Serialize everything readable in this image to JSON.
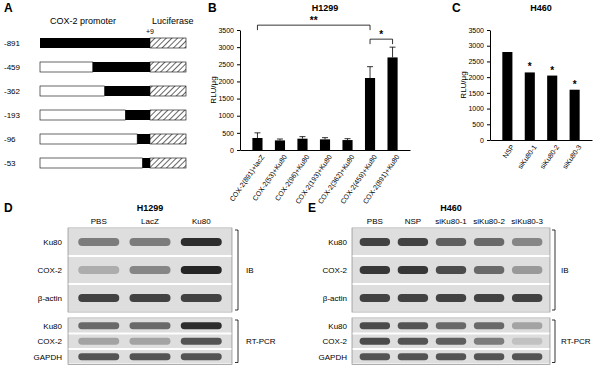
{
  "chart_data": [
    {
      "panel": "B",
      "type": "bar",
      "title": "H1299",
      "y_label": "RLU/μg",
      "categories": [
        "COX-2(891)+lacZ",
        "COX-2(53)+Ku80",
        "COX-2(96)+Ku80",
        "COX-2(193)+Ku80",
        "COX-2(362)+Ku80",
        "COX-2(459)+Ku80",
        "COX-2(891)+Ku80"
      ],
      "values": [
        350,
        280,
        330,
        310,
        290,
        2100,
        2700
      ],
      "errors": [
        150,
        40,
        60,
        50,
        40,
        330,
        300
      ],
      "color": "#000000",
      "ylim": [
        0,
        3500
      ],
      "yticks": [
        0,
        500,
        1000,
        1500,
        2000,
        2500,
        3000,
        3500
      ],
      "annotations": [
        {
          "text": "**",
          "from": 0,
          "to": 5
        },
        {
          "text": "*",
          "from": 5,
          "to": 6
        }
      ]
    },
    {
      "panel": "C",
      "type": "bar",
      "title": "H460",
      "y_label": "RLU/μg",
      "categories": [
        "NSP",
        "siKu80-1",
        "siKu80-2",
        "siKu80-3"
      ],
      "values": [
        2800,
        2150,
        2050,
        1600
      ],
      "color": "#000000",
      "ylim": [
        0,
        3500
      ],
      "yticks": [
        0,
        500,
        1000,
        1500,
        2000,
        2500,
        3000,
        3500
      ],
      "annotations": [
        {
          "text": "*",
          "category": 1
        },
        {
          "text": "*",
          "category": 2
        },
        {
          "text": "*",
          "category": 3
        }
      ]
    }
  ],
  "diagram": {
    "panel": "A",
    "header": "COX-2 promoter",
    "reporter": "Luciferase",
    "end": {
      "value": 9,
      "label": "+9"
    },
    "constructs": [
      -891,
      -459,
      -362,
      -193,
      -96,
      -53
    ]
  },
  "blots": [
    {
      "panel": "D",
      "title": "H1299",
      "lanes": [
        "PBS",
        "LacZ",
        "Ku80"
      ],
      "groups": [
        {
          "label": "IB",
          "rows": [
            {
              "name": "Ku80",
              "intensity": [
                0.5,
                0.5,
                0.9
              ]
            },
            {
              "name": "COX-2",
              "intensity": [
                0.25,
                0.45,
                0.95
              ]
            },
            {
              "name": "β-actin",
              "intensity": [
                0.8,
                0.8,
                0.8
              ]
            }
          ]
        },
        {
          "label": "RT-PCR",
          "rows": [
            {
              "name": "Ku80",
              "intensity": [
                0.6,
                0.6,
                0.9
              ]
            },
            {
              "name": "COX-2",
              "intensity": [
                0.3,
                0.3,
                0.7
              ]
            },
            {
              "name": "GAPDH",
              "intensity": [
                0.7,
                0.7,
                0.7
              ]
            }
          ]
        }
      ]
    },
    {
      "panel": "E",
      "title": "H460",
      "lanes": [
        "PBS",
        "NSP",
        "siKu80-1",
        "siKu80-2",
        "siKu80-3"
      ],
      "groups": [
        {
          "label": "IB",
          "rows": [
            {
              "name": "Ku80",
              "intensity": [
                0.8,
                0.8,
                0.65,
                0.6,
                0.45
              ]
            },
            {
              "name": "COX-2",
              "intensity": [
                0.85,
                0.85,
                0.75,
                0.6,
                0.35
              ]
            },
            {
              "name": "β-actin",
              "intensity": [
                0.8,
                0.8,
                0.8,
                0.8,
                0.8
              ]
            }
          ]
        },
        {
          "label": "RT-PCR",
          "rows": [
            {
              "name": "Ku80",
              "intensity": [
                0.75,
                0.7,
                0.6,
                0.6,
                0.3
              ]
            },
            {
              "name": "COX-2",
              "intensity": [
                0.75,
                0.7,
                0.65,
                0.5,
                0.15
              ]
            },
            {
              "name": "GAPDH",
              "intensity": [
                0.7,
                0.7,
                0.7,
                0.7,
                0.7
              ]
            }
          ]
        }
      ]
    }
  ]
}
